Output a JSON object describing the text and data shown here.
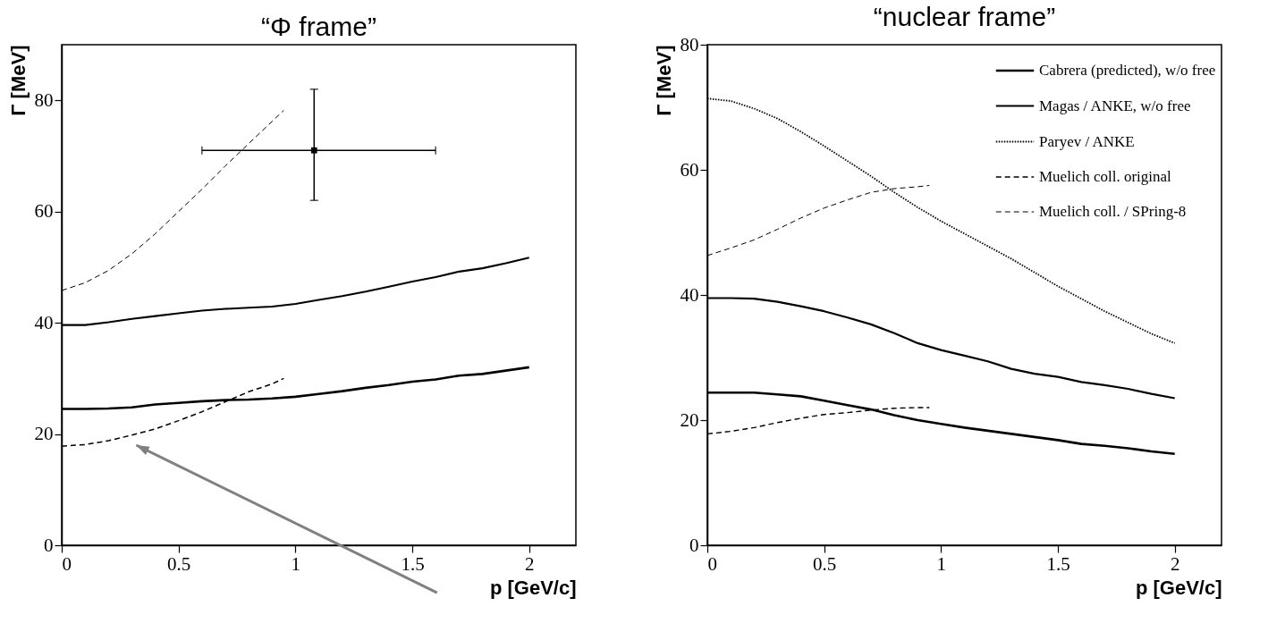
{
  "chart_data": [
    {
      "type": "line",
      "title": "“Φ frame”",
      "xlabel": "p [GeV/c]",
      "ylabel": "Γ [MeV]",
      "xlim": [
        0,
        2.2
      ],
      "ylim": [
        0,
        90
      ],
      "xticks": [
        0,
        0.5,
        1,
        1.5,
        2
      ],
      "yticks": [
        0,
        20,
        40,
        60,
        80
      ],
      "series": [
        {
          "color": "#000000",
          "line_style": "solid",
          "x": [
            0,
            0.1,
            0.2,
            0.3,
            0.4,
            0.5,
            0.6,
            0.7,
            0.8,
            0.9,
            1,
            1.1,
            1.2,
            1.3,
            1.4,
            1.5,
            1.6,
            1.7,
            1.8,
            1.9,
            2
          ],
          "values": [
            24.5,
            24.5,
            24.6,
            24.8,
            25.3,
            25.6,
            25.9,
            26.1,
            26.2,
            26.4,
            26.7,
            27.2,
            27.7,
            28.3,
            28.8,
            29.4,
            29.8,
            30.5,
            30.8,
            31.4,
            32.0
          ]
        },
        {
          "color": "#000000",
          "line_style": "solid",
          "x": [
            0,
            0.1,
            0.2,
            0.3,
            0.4,
            0.5,
            0.6,
            0.7,
            0.8,
            0.9,
            1,
            1.1,
            1.2,
            1.3,
            1.4,
            1.5,
            1.6,
            1.7,
            1.8,
            1.9,
            2
          ],
          "values": [
            39.6,
            39.6,
            40.1,
            40.7,
            41.2,
            41.7,
            42.2,
            42.5,
            42.7,
            42.9,
            43.4,
            44.1,
            44.8,
            45.6,
            46.5,
            47.4,
            48.2,
            49.2,
            49.8,
            50.7,
            51.7
          ]
        },
        {
          "color": "#000000",
          "line_style": "dashed",
          "x": [
            0,
            0.1,
            0.2,
            0.3,
            0.4,
            0.5,
            0.6,
            0.7,
            0.8,
            0.9,
            0.95
          ],
          "values": [
            17.8,
            18.1,
            18.8,
            19.8,
            20.9,
            22.4,
            24.0,
            25.8,
            27.6,
            29.0,
            30.0
          ]
        },
        {
          "color": "#000000",
          "line_style": "dashed",
          "x": [
            0,
            0.1,
            0.2,
            0.3,
            0.4,
            0.5,
            0.6,
            0.7,
            0.8,
            0.9,
            0.95
          ],
          "values": [
            45.8,
            47.2,
            49.4,
            52.4,
            56.0,
            60.0,
            64.0,
            68.2,
            72.2,
            76.2,
            78.2
          ]
        },
        {
          "type": "scatter",
          "marker": "square",
          "color": "#000000",
          "x": [
            1.08
          ],
          "values": [
            71
          ],
          "errors": [
            [
              62,
              82
            ]
          ],
          "xerrors": [
            [
              0.6,
              1.6
            ]
          ]
        }
      ]
    },
    {
      "type": "line",
      "title": "“nuclear frame”",
      "xlabel": "p [GeV/c]",
      "ylabel": "Γ [MeV]",
      "xlim": [
        0,
        2.2
      ],
      "ylim": [
        0,
        80
      ],
      "xticks": [
        0,
        0.5,
        1,
        1.5,
        2
      ],
      "yticks": [
        0,
        20,
        40,
        60,
        80
      ],
      "legend": "top right",
      "series": [
        {
          "name": "Cabrera (predicted), w/o free",
          "color": "#000000",
          "line_style": "solid",
          "x": [
            0,
            0.1,
            0.2,
            0.3,
            0.4,
            0.5,
            0.6,
            0.7,
            0.8,
            0.9,
            1,
            1.1,
            1.2,
            1.3,
            1.4,
            1.5,
            1.6,
            1.7,
            1.8,
            1.9,
            2
          ],
          "values": [
            24.4,
            24.4,
            24.4,
            24.1,
            23.8,
            23.1,
            22.4,
            21.7,
            20.8,
            20.0,
            19.4,
            18.8,
            18.3,
            17.8,
            17.3,
            16.8,
            16.2,
            15.9,
            15.5,
            15.0,
            14.6
          ]
        },
        {
          "name": "Magas / ANKE, w/o free",
          "color": "#000000",
          "line_style": "solid",
          "x": [
            0,
            0.1,
            0.2,
            0.3,
            0.4,
            0.5,
            0.6,
            0.7,
            0.8,
            0.9,
            1,
            1.1,
            1.2,
            1.3,
            1.4,
            1.5,
            1.6,
            1.7,
            1.8,
            1.9,
            2
          ],
          "values": [
            39.5,
            39.5,
            39.4,
            38.9,
            38.2,
            37.4,
            36.4,
            35.3,
            33.9,
            32.3,
            31.2,
            30.3,
            29.4,
            28.2,
            27.4,
            26.9,
            26.1,
            25.6,
            25.0,
            24.2,
            23.5
          ]
        },
        {
          "name": "Paryev / ANKE",
          "color": "#000000",
          "line_style": "dotted",
          "x": [
            0,
            0.1,
            0.2,
            0.3,
            0.4,
            0.5,
            0.6,
            0.7,
            0.8,
            0.9,
            1,
            1.1,
            1.2,
            1.3,
            1.4,
            1.5,
            1.6,
            1.7,
            1.8,
            1.9,
            2
          ],
          "values": [
            71.4,
            71.0,
            69.8,
            68.2,
            66.1,
            63.8,
            61.4,
            59.0,
            56.4,
            54.0,
            51.8,
            49.8,
            47.8,
            45.8,
            43.6,
            41.4,
            39.4,
            37.4,
            35.6,
            33.8,
            32.3
          ]
        },
        {
          "name": "Muelich coll. original",
          "color": "#000000",
          "line_style": "dashed",
          "x": [
            0,
            0.1,
            0.2,
            0.3,
            0.4,
            0.5,
            0.6,
            0.7,
            0.8,
            0.9,
            0.95
          ],
          "values": [
            17.8,
            18.2,
            18.8,
            19.6,
            20.3,
            20.9,
            21.2,
            21.6,
            21.9,
            22.0,
            22.0
          ]
        },
        {
          "name": "Muelich coll. / SPring-8",
          "color": "#000000",
          "line_style": "dashed",
          "x": [
            0,
            0.1,
            0.2,
            0.3,
            0.4,
            0.5,
            0.6,
            0.7,
            0.8,
            0.9,
            0.95
          ],
          "values": [
            46.3,
            47.5,
            48.8,
            50.5,
            52.3,
            53.9,
            55.2,
            56.4,
            57.0,
            57.3,
            57.5
          ]
        }
      ]
    }
  ]
}
